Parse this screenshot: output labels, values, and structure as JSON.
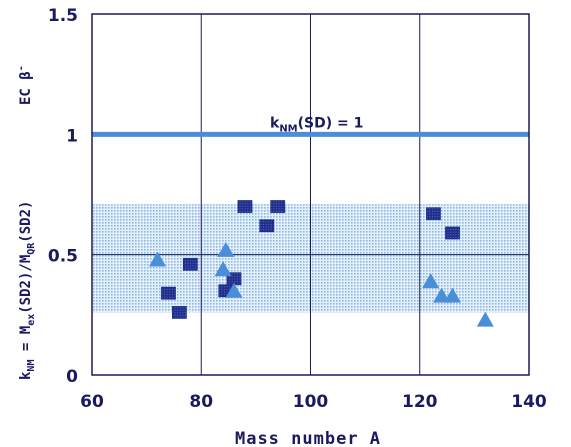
{
  "chart_data": {
    "type": "scatter",
    "xlabel": "Mass number A",
    "ylabel": {
      "main": "k",
      "main_sub": "NM",
      "eq": " = M",
      "eq_sub": "ex",
      "mid": "(SD2)/M",
      "mid_sub": "QR",
      "tail": "(SD2)"
    },
    "ylabel_top": {
      "text": "EC  β",
      "sup": "-"
    },
    "xlim": [
      60,
      140
    ],
    "ylim": [
      0,
      1.5
    ],
    "xticks": [
      "60",
      "80",
      "100",
      "120",
      "140"
    ],
    "yticks": [
      "0",
      "0.5",
      "1",
      "1.5"
    ],
    "band": {
      "from": 0.26,
      "to": 0.71,
      "color": "#9fc8e8"
    },
    "reference_line": {
      "y": 1.0,
      "color": "#4a8ed8",
      "label": "k",
      "label_sub": "NM",
      "label_rest": "(SD) = 1"
    },
    "series": [
      {
        "marker": "square",
        "color": "#1f2e8a",
        "points": [
          [
            74,
            0.34
          ],
          [
            76,
            0.26
          ],
          [
            78,
            0.46
          ],
          [
            84.5,
            0.35
          ],
          [
            86,
            0.4
          ],
          [
            88,
            0.7
          ],
          [
            92,
            0.62
          ],
          [
            94,
            0.7
          ],
          [
            122.5,
            0.67
          ],
          [
            126,
            0.59
          ]
        ]
      },
      {
        "marker": "triangle",
        "color": "#4a8ed8",
        "points": [
          [
            72,
            0.48
          ],
          [
            84,
            0.44
          ],
          [
            84.5,
            0.52
          ],
          [
            86,
            0.35
          ],
          [
            122,
            0.39
          ],
          [
            124,
            0.33
          ],
          [
            126,
            0.33
          ],
          [
            132,
            0.23
          ]
        ]
      }
    ]
  }
}
